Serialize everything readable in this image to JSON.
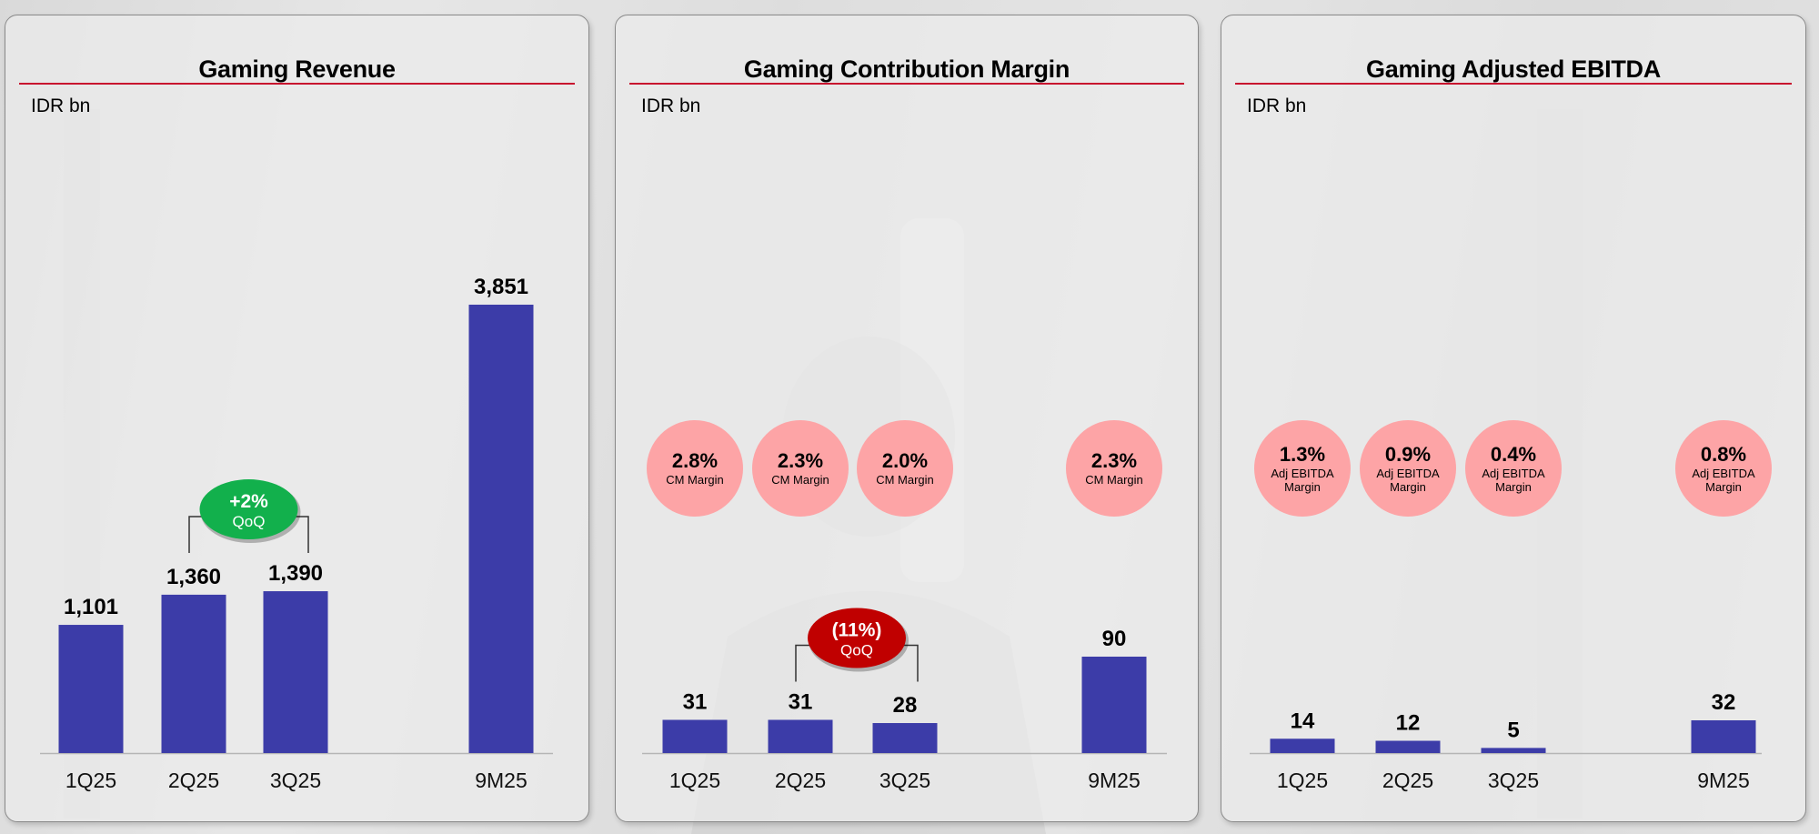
{
  "colors": {
    "bar": "#3c3ca8",
    "title_rule": "#c8102e",
    "margin_bubble": "#fda4a6",
    "qoq_positive": "#12b04c",
    "qoq_negative": "#c00000"
  },
  "chart_data": [
    {
      "type": "bar",
      "title": "Gaming Revenue",
      "unit": "IDR bn",
      "categories": [
        "1Q25",
        "2Q25",
        "3Q25",
        "9M25"
      ],
      "values": [
        1101,
        1360,
        1390,
        3851
      ],
      "value_labels": [
        "1,101",
        "1,360",
        "1,390",
        "3,851"
      ],
      "xlabel": "",
      "ylabel": "",
      "ylim": [
        0,
        3851
      ],
      "grid": false,
      "annotation": {
        "text": "+2%",
        "subtext": "QoQ",
        "from": "2Q25",
        "to": "3Q25",
        "sentiment": "positive"
      },
      "margins": []
    },
    {
      "type": "bar",
      "title": "Gaming Contribution Margin",
      "unit": "IDR bn",
      "categories": [
        "1Q25",
        "2Q25",
        "3Q25",
        "9M25"
      ],
      "values": [
        31,
        31,
        28,
        90
      ],
      "value_labels": [
        "31",
        "31",
        "28",
        "90"
      ],
      "xlabel": "",
      "ylabel": "",
      "ylim": [
        0,
        90
      ],
      "grid": false,
      "annotation": {
        "text": "(11%)",
        "subtext": "QoQ",
        "from": "2Q25",
        "to": "3Q25",
        "sentiment": "negative"
      },
      "margins": [
        {
          "category": "1Q25",
          "value": "2.8%",
          "label": "CM Margin"
        },
        {
          "category": "2Q25",
          "value": "2.3%",
          "label": "CM Margin"
        },
        {
          "category": "3Q25",
          "value": "2.0%",
          "label": "CM Margin"
        },
        {
          "category": "9M25",
          "value": "2.3%",
          "label": "CM Margin"
        }
      ]
    },
    {
      "type": "bar",
      "title": "Gaming Adjusted EBITDA",
      "unit": "IDR bn",
      "categories": [
        "1Q25",
        "2Q25",
        "3Q25",
        "9M25"
      ],
      "values": [
        14,
        12,
        5,
        32
      ],
      "value_labels": [
        "14",
        "12",
        "5",
        "32"
      ],
      "xlabel": "",
      "ylabel": "",
      "ylim": [
        0,
        32
      ],
      "grid": false,
      "annotation": null,
      "margins": [
        {
          "category": "1Q25",
          "value": "1.3%",
          "label": "Adj EBITDA Margin"
        },
        {
          "category": "2Q25",
          "value": "0.9%",
          "label": "Adj EBITDA Margin"
        },
        {
          "category": "3Q25",
          "value": "0.4%",
          "label": "Adj EBITDA Margin"
        },
        {
          "category": "9M25",
          "value": "0.8%",
          "label": "Adj EBITDA Margin"
        }
      ]
    }
  ]
}
